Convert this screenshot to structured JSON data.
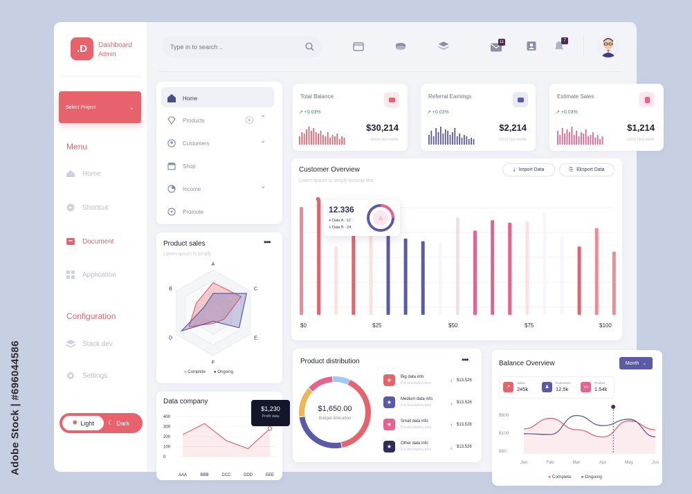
{
  "watermark": {
    "stock_id": "Adobe Stock | #696044586"
  },
  "brand": {
    "logo_letter": ".D",
    "title": "Dashboard",
    "subtitle": "Admin"
  },
  "project": {
    "label": "Select Project"
  },
  "menu": {
    "title": "Menu",
    "items": [
      "Home",
      "Shortcut",
      "Document",
      "Application"
    ],
    "active": "Document"
  },
  "configuration": {
    "title": "Configuration",
    "items": [
      "Stack dev",
      "Settings"
    ]
  },
  "theme": {
    "light": "Light",
    "dark": "Dark"
  },
  "search": {
    "placeholder": "Type in to search .."
  },
  "header": {
    "mail_count": "11",
    "notif_count": "7"
  },
  "nav": {
    "items": [
      "Home",
      "Products",
      "Customers",
      "Shop",
      "Income",
      "Promote"
    ]
  },
  "stats": [
    {
      "title": "Total Balance",
      "change": "↗ +0.03%",
      "value": "$30,214",
      "sub": "since last week"
    },
    {
      "title": "Referral Earnings",
      "change": "↗ +0.03%",
      "value": "$2,214",
      "sub": "since last week"
    },
    {
      "title": "Estimate Sales",
      "change": "↗ +0.03%",
      "value": "$1,214",
      "sub": "since last week"
    }
  ],
  "overview": {
    "title": "Customer Overview",
    "subtitle": "Lorem Ipsum is simply dummy text",
    "import": "Import Data",
    "export": "Eksport Data",
    "tooltip_value": "12.336",
    "tooltip_a": "Data A : 12",
    "tooltip_b": "Data B : 24",
    "x_ticks": [
      "$0",
      "$25",
      "$50",
      "$75",
      "$100"
    ]
  },
  "product_sales": {
    "title": "Product sales",
    "subtitle": "Lorem Ipsum is simply",
    "axes": [
      "A",
      "C",
      "E",
      "F",
      "D",
      "B"
    ],
    "legend": [
      "Complete",
      "Ongoing"
    ]
  },
  "data_company": {
    "title": "Data company",
    "tooltip_value": "$1,230",
    "tooltip_label": "Profit data",
    "y_ticks": [
      "400",
      "300",
      "200",
      "100",
      "0"
    ],
    "x_ticks": [
      "AAA",
      "BBB",
      "CCC",
      "DDD",
      "EEE"
    ]
  },
  "distribution": {
    "title": "Product distribution",
    "center_value": "$1,650.00",
    "center_label": "Budget Allocation",
    "rows": [
      {
        "title": "Big data info",
        "desc": "Put description here",
        "value": "$13,526",
        "dir": "up",
        "color": "#e8626b"
      },
      {
        "title": "Medium data info",
        "desc": "Put description here",
        "value": "$13,526",
        "dir": "down",
        "color": "#5a5aa8"
      },
      {
        "title": "Small data info",
        "desc": "Put description here",
        "value": "$13,526",
        "dir": "up",
        "color": "#e8628f"
      },
      {
        "title": "Other data info",
        "desc": "Put description here",
        "value": "$13,526",
        "dir": "down",
        "color": "#2e2c5a"
      }
    ]
  },
  "balance": {
    "title": "Balance Overview",
    "filter": "Month",
    "kpis": [
      {
        "label": "Sales",
        "value": "245k",
        "color": "#e8626b"
      },
      {
        "label": "Customers",
        "value": "12.5k",
        "color": "#5a5aa8"
      },
      {
        "label": "Product",
        "value": "1.54k",
        "color": "#e8628f"
      }
    ],
    "y_ticks": [
      "$500",
      "$100",
      "$50"
    ],
    "x_ticks": [
      "Jan",
      "Feb",
      "Mar",
      "Apr",
      "May",
      "Jun"
    ],
    "legend": [
      "Complete",
      "Ongoing"
    ]
  },
  "colors": {
    "accent": "#e8626b",
    "indigo": "#5a5aa8",
    "pink": "#e8628f",
    "dark": "#4d2a55"
  },
  "chart_data": [
    {
      "type": "bar",
      "title": "Customer Overview",
      "bar_values": [
        82,
        88,
        52,
        62,
        60,
        64,
        58,
        56,
        55,
        74,
        64,
        72,
        70,
        71,
        78,
        60,
        52,
        66,
        48,
        42,
        40,
        50
      ],
      "bar_colors": [
        "#f08a92",
        "#e8626b",
        "#fbe1e4",
        "#e8626b",
        "#fbe1e4",
        "#5a5aa8",
        "#5a5aa8",
        "#5a5aa8",
        "#f6f6fb",
        "#f4dfe6",
        "#e8628f",
        "#e8628f",
        "#e8628f",
        "#fbe1e4",
        "#f6f6fb",
        "#f6f6fb",
        "#e8626b",
        "#f08a92",
        "#f08a92",
        "#fbe1e4",
        "#f6f6fb",
        "#fbe1e4"
      ]
    },
    {
      "type": "bar",
      "title": "Total Balance",
      "values": [
        6,
        9,
        8,
        11,
        13,
        10,
        12,
        9,
        8,
        10,
        7,
        6,
        9,
        5,
        7,
        6,
        8,
        4,
        6,
        5
      ]
    },
    {
      "type": "bar",
      "title": "Referral Earnings",
      "values": [
        7,
        10,
        6,
        12,
        9,
        13,
        8,
        11,
        10,
        7,
        9,
        12,
        6,
        8,
        5,
        7,
        6,
        4,
        5,
        4
      ]
    },
    {
      "type": "bar",
      "title": "Estimate Sales",
      "values": [
        10,
        7,
        12,
        8,
        11,
        9,
        13,
        7,
        10,
        6,
        9,
        8,
        11,
        6,
        7,
        9,
        5,
        7,
        4,
        6
      ]
    },
    {
      "type": "line",
      "title": "Data company",
      "categories": [
        "AAA",
        "BBB",
        "CCC",
        "DDD",
        "EEE"
      ],
      "values": [
        220,
        330,
        160,
        80,
        280
      ],
      "ylim": [
        0,
        400
      ]
    },
    {
      "type": "pie",
      "title": "Product distribution",
      "slices": [
        {
          "value": 40,
          "color": "#e8626b"
        },
        {
          "value": 26,
          "color": "#5a5aa8"
        },
        {
          "value": 14,
          "color": "#f0b454"
        },
        {
          "value": 12,
          "color": "#e8628f"
        },
        {
          "value": 8,
          "color": "#a3c9ef"
        }
      ]
    },
    {
      "type": "line",
      "title": "Balance Overview",
      "categories": [
        "Jan",
        "Feb",
        "Mar",
        "Apr",
        "May",
        "Jun"
      ],
      "series": [
        {
          "name": "Complete",
          "values": [
            62,
            88,
            60,
            42,
            82,
            60
          ],
          "color": "#e8626b"
        },
        {
          "name": "Ongoing",
          "values": [
            50,
            48,
            95,
            70,
            86,
            42
          ],
          "color": "#5a5aa8"
        }
      ],
      "ylim": [
        0,
        120
      ]
    },
    {
      "type": "radar",
      "title": "Product sales",
      "axes": [
        "A",
        "C",
        "E",
        "F",
        "D",
        "B"
      ],
      "series": [
        {
          "name": "Complete",
          "values": [
            0.7,
            0.75,
            0.3,
            0.25,
            0.65,
            0.45
          ],
          "color": "#e8626b"
        },
        {
          "name": "Ongoing",
          "values": [
            0.45,
            0.9,
            0.7,
            0.2,
            0.85,
            0.25
          ],
          "color": "#5a5aa8"
        }
      ]
    }
  ]
}
